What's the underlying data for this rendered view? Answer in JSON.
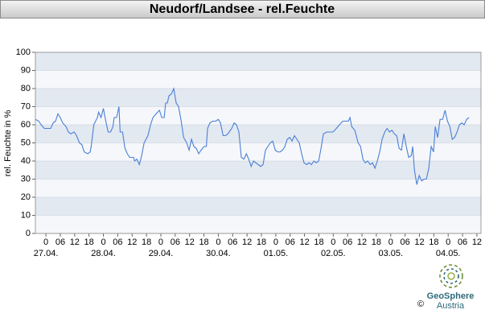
{
  "chart_data": {
    "type": "line",
    "title": "Neudorf/Landsee - rel.Feuchte",
    "y_label": "rel. Feuchte in %",
    "xlim": [
      -4.4,
      181.7
    ],
    "ylim": [
      0,
      100
    ],
    "yticks": [
      0,
      10,
      20,
      30,
      40,
      50,
      60,
      70,
      80,
      90,
      100
    ],
    "xticks": [
      {
        "value": 0,
        "label": "0"
      },
      {
        "value": 6,
        "label": "06"
      },
      {
        "value": 12,
        "label": "12"
      },
      {
        "value": 18,
        "label": "18"
      },
      {
        "value": 24,
        "label": "0"
      },
      {
        "value": 30,
        "label": "06"
      },
      {
        "value": 36,
        "label": "12"
      },
      {
        "value": 42,
        "label": "18"
      },
      {
        "value": 48,
        "label": "0"
      },
      {
        "value": 54,
        "label": "06"
      },
      {
        "value": 60,
        "label": "12"
      },
      {
        "value": 66,
        "label": "18"
      },
      {
        "value": 72,
        "label": "0"
      },
      {
        "value": 78,
        "label": "06"
      },
      {
        "value": 84,
        "label": "12"
      },
      {
        "value": 90,
        "label": "18"
      },
      {
        "value": 96,
        "label": "0"
      },
      {
        "value": 102,
        "label": "06"
      },
      {
        "value": 108,
        "label": "12"
      },
      {
        "value": 114,
        "label": "18"
      },
      {
        "value": 120,
        "label": "0"
      },
      {
        "value": 126,
        "label": "06"
      },
      {
        "value": 132,
        "label": "12"
      },
      {
        "value": 138,
        "label": "18"
      },
      {
        "value": 144,
        "label": "0"
      },
      {
        "value": 150,
        "label": "06"
      },
      {
        "value": 156,
        "label": "12"
      },
      {
        "value": 162,
        "label": "18"
      },
      {
        "value": 168,
        "label": "0"
      },
      {
        "value": 174,
        "label": "06"
      },
      {
        "value": 180,
        "label": "12"
      }
    ],
    "date_labels": [
      {
        "value": 0,
        "label": "27.04."
      },
      {
        "value": 24,
        "label": "28.04."
      },
      {
        "value": 48,
        "label": "29.04."
      },
      {
        "value": 72,
        "label": "30.04."
      },
      {
        "value": 96,
        "label": "01.05."
      },
      {
        "value": 120,
        "label": "02.05."
      },
      {
        "value": 144,
        "label": "03.05."
      },
      {
        "value": 168,
        "label": "04.05."
      }
    ],
    "band_colors": [
      "#e3e9f1",
      "#f5f7fa"
    ],
    "series": [
      {
        "color": "#4a7fd6",
        "x": [
          -4.4,
          -3,
          -2,
          -0.7,
          2,
          3,
          4,
          5,
          6,
          7,
          8.4,
          9.4,
          10.4,
          11.8,
          12.8,
          14,
          15,
          16,
          17.5,
          18.5,
          19,
          20,
          21.5,
          22,
          23,
          24,
          25,
          26,
          27,
          28,
          28.5,
          29.5,
          30.5,
          31,
          32,
          33,
          34,
          35,
          36.6,
          37,
          38,
          39,
          40,
          41,
          42.6,
          43.7,
          44.7,
          46,
          47.4,
          48.4,
          49.4,
          50,
          50.7,
          51.4,
          52.4,
          53.4,
          54.4,
          55.4,
          56.5,
          57.5,
          58.8,
          59.8,
          60.8,
          61.8,
          62.8,
          63.8,
          64.8,
          66,
          67,
          67.5,
          68.5,
          69.6,
          70.9,
          72,
          72.9,
          74,
          75,
          76,
          77.6,
          78.6,
          79.6,
          80.6,
          81.6,
          82.7,
          83.7,
          84.7,
          85.7,
          86.7,
          87.7,
          88.7,
          89.7,
          90.7,
          91.7,
          92.7,
          93.7,
          94.7,
          95.8,
          96.8,
          97.8,
          98.8,
          99.8,
          100.8,
          101.8,
          102.8,
          103.8,
          104.8,
          105.8,
          106.8,
          107.8,
          108.9,
          109.9,
          110.9,
          111.9,
          112.9,
          113.9,
          114.9,
          115.9,
          117.3,
          118.6,
          119.9,
          121.3,
          122.6,
          124,
          125.3,
          126.3,
          127,
          127.7,
          129,
          130.4,
          131.4,
          132.4,
          133.4,
          134.4,
          135.4,
          136.4,
          137.4,
          138.4,
          139.4,
          140.4,
          141.5,
          142.5,
          143.5,
          144.5,
          145.5,
          146.5,
          147.5,
          148.5,
          149.5,
          150.5,
          151.5,
          152.6,
          153.2,
          153.9,
          154.9,
          155.9,
          156.9,
          157.9,
          158.9,
          159.9,
          160.9,
          161.9,
          162.6,
          163.6,
          164.6,
          165.7,
          166.7,
          167.7,
          168.7,
          169.7,
          170.7,
          171.7,
          172.7,
          173.7,
          174.7,
          175.7,
          176.7
        ],
        "values": [
          63,
          62,
          60,
          58,
          58,
          61,
          62,
          66,
          64,
          61,
          59,
          56,
          55,
          56,
          54,
          50,
          49,
          45,
          44,
          45,
          49,
          60,
          64,
          67,
          64,
          69,
          62,
          56,
          56,
          59,
          64,
          64,
          70,
          56,
          56,
          47,
          44,
          42,
          42,
          40,
          41,
          38,
          43,
          50,
          54,
          60,
          64,
          66,
          68,
          64,
          64,
          72,
          72,
          76,
          77,
          80,
          72,
          70,
          62,
          53,
          50,
          46,
          52,
          48,
          47,
          44,
          46,
          48,
          48,
          58,
          61,
          62,
          62,
          63,
          61,
          54,
          54,
          55,
          58,
          61,
          60,
          56,
          42,
          41,
          44,
          41,
          37,
          40,
          39,
          38,
          37,
          38,
          46,
          48,
          50,
          51,
          46,
          45,
          45,
          46,
          48,
          52,
          53,
          51,
          54,
          52,
          50,
          44,
          39,
          38,
          39,
          38,
          40,
          39,
          40,
          47,
          55,
          56,
          56,
          56,
          58,
          60,
          62,
          62,
          62,
          64,
          59,
          57,
          50,
          48,
          41,
          39,
          40,
          38,
          39,
          36,
          40,
          45,
          52,
          56,
          58,
          56,
          57,
          55,
          54,
          47,
          46,
          55,
          48,
          42,
          43,
          48,
          35,
          27,
          32,
          29,
          30,
          30,
          36,
          48,
          45,
          59,
          53,
          63,
          63,
          68,
          62,
          59,
          52,
          53,
          56,
          60,
          61,
          60,
          63,
          64
        ]
      }
    ]
  },
  "logo": {
    "name": "GeoSphere",
    "sub": "Austria",
    "copyright": "©"
  }
}
